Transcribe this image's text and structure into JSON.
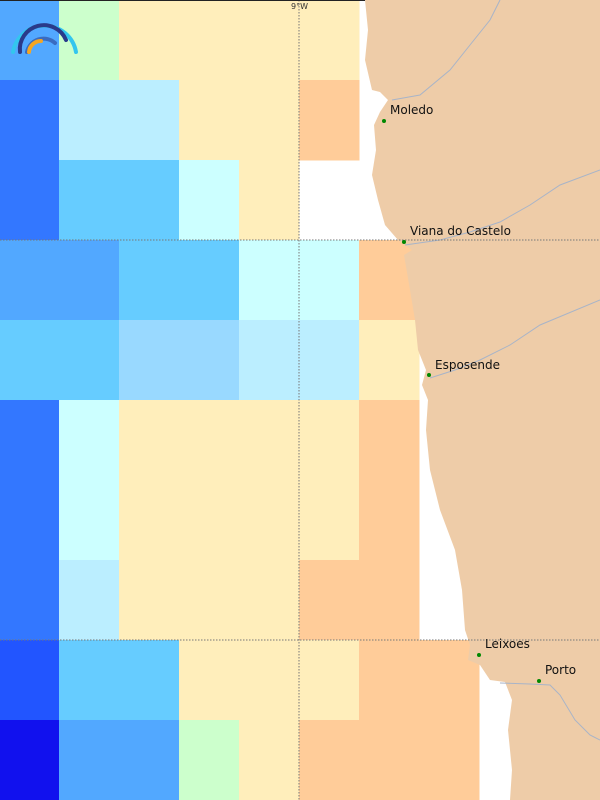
{
  "map": {
    "graticule": {
      "longitude_label": "9°W"
    },
    "palette": {
      "A": "#52a8ff",
      "B": "#3377ff",
      "C": "#ccffcc",
      "Y": "#ffeebb",
      "O": "#ffcc99",
      "L": "#bbeeff",
      "S": "#66ccff",
      "Cy": "#ccffff",
      "P": "#99d9ff",
      "D": "#2255ff",
      "E": "#1111ee"
    },
    "land_color": "#eecca8",
    "river_color": "#a8b4c8",
    "city_dot_color": "#008800",
    "grid": [
      [
        "A",
        "C",
        "Y",
        "Y",
        "Y",
        "Y",
        null,
        null
      ],
      [
        "B",
        "L",
        "L",
        "Y",
        "Y",
        "O",
        null,
        null
      ],
      [
        "B",
        "S",
        "S",
        "Cy",
        "Y",
        null,
        null,
        null
      ],
      [
        "A",
        "A",
        "S",
        "S",
        "Cy",
        "Cy",
        "O",
        null
      ],
      [
        "S",
        "S",
        "P",
        "P",
        "L",
        "L",
        "Y",
        null
      ],
      [
        "B",
        "Cy",
        "Y",
        "Y",
        "Y",
        "Y",
        "O",
        null
      ],
      [
        "B",
        "Cy",
        "Y",
        "Y",
        "Y",
        "Y",
        "O",
        null
      ],
      [
        "B",
        "L",
        "Y",
        "Y",
        "Y",
        "O",
        "O",
        null
      ],
      [
        "D",
        "S",
        "S",
        "Y",
        "Y",
        "Y",
        "O",
        "O"
      ],
      [
        "E",
        "A",
        "A",
        "C",
        "Y",
        "O",
        "O",
        "O"
      ]
    ],
    "cities": [
      {
        "name": "Moledo"
      },
      {
        "name": "Viana do Castelo"
      },
      {
        "name": "Esposende"
      },
      {
        "name": "Leixoes"
      },
      {
        "name": "Porto"
      }
    ]
  },
  "logo": {
    "icon": "wave-arcs-logo"
  }
}
